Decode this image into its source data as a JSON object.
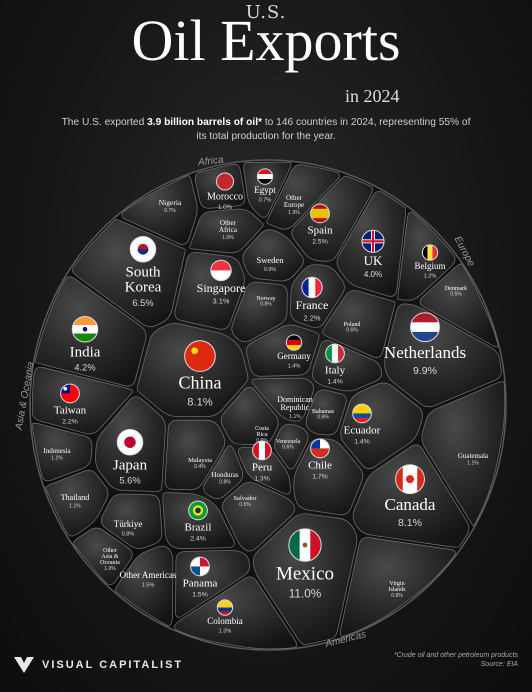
{
  "title": {
    "prefix": "U.S.",
    "main": "Oil Exports",
    "suffix": "in 2024"
  },
  "subtitle": {
    "pre": "The U.S. exported ",
    "bold": "3.9 billion barrels of oil*",
    "post": " to 146 countries in 2024, representing 55% of its total production for the year."
  },
  "regions": {
    "africa": "Africa",
    "europe": "Europe",
    "asia": "Asia & Oceania",
    "americas": "Americas"
  },
  "countries": [
    {
      "name": "Nigeria",
      "value": "0.7%"
    },
    {
      "name": "Morocco",
      "value": "1.0%"
    },
    {
      "name": "Egypt",
      "value": "0.7%"
    },
    {
      "name": "Other Europe",
      "value": "1.9%"
    },
    {
      "name": "Other Africa",
      "value": "1.0%"
    },
    {
      "name": "Spain",
      "value": "2.5%"
    },
    {
      "name": "South Korea",
      "value": "6.5%"
    },
    {
      "name": "Sweden",
      "value": "0.9%"
    },
    {
      "name": "UK",
      "value": "4.0%"
    },
    {
      "name": "Belgium",
      "value": "1.2%"
    },
    {
      "name": "Singapore",
      "value": "3.1%"
    },
    {
      "name": "Norway",
      "value": "0.8%"
    },
    {
      "name": "Denmark",
      "value": "0.5%"
    },
    {
      "name": "France",
      "value": "2.2%"
    },
    {
      "name": "Poland",
      "value": "0.6%"
    },
    {
      "name": "India",
      "value": "4.2%"
    },
    {
      "name": "Germany",
      "value": "1.4%"
    },
    {
      "name": "Italy",
      "value": "1.4%"
    },
    {
      "name": "Netherlands",
      "value": "9.9%"
    },
    {
      "name": "China",
      "value": "8.1%"
    },
    {
      "name": "Taiwan",
      "value": "2.2%"
    },
    {
      "name": "Dominican Republic",
      "value": "1.1%"
    },
    {
      "name": "Bahamas",
      "value": "0.6%"
    },
    {
      "name": "Costa Rica",
      "value": "0.6%"
    },
    {
      "name": "Ecuador",
      "value": "1.4%"
    },
    {
      "name": "Indonesia",
      "value": "1.1%"
    },
    {
      "name": "Japan",
      "value": "5.6%"
    },
    {
      "name": "Venezuela",
      "value": "0.6%"
    },
    {
      "name": "Malaysia",
      "value": "0.4%"
    },
    {
      "name": "Honduras",
      "value": "0.8%"
    },
    {
      "name": "Peru",
      "value": "1.3%"
    },
    {
      "name": "Chile",
      "value": "1.7%"
    },
    {
      "name": "Guatemala",
      "value": "1.1%"
    },
    {
      "name": "Thailand",
      "value": "1.1%"
    },
    {
      "name": "Salvador",
      "value": "0.5%"
    },
    {
      "name": "Canada",
      "value": "8.1%"
    },
    {
      "name": "Türkiye",
      "value": "0.8%"
    },
    {
      "name": "Brazil",
      "value": "2.4%"
    },
    {
      "name": "Other Asia & Oceania",
      "value": "1.0%"
    },
    {
      "name": "Mexico",
      "value": "11.0%"
    },
    {
      "name": "Other Americas",
      "value": "1.5%"
    },
    {
      "name": "Panama",
      "value": "1.5%"
    },
    {
      "name": "Virgin Islands",
      "value": "0.8%"
    },
    {
      "name": "Colombia",
      "value": "1.3%"
    }
  ],
  "footer": {
    "brand": "VISUAL CAPITALIST",
    "note1": "*Crude oil and other petroleum products",
    "note2": "Source: EIA"
  }
}
